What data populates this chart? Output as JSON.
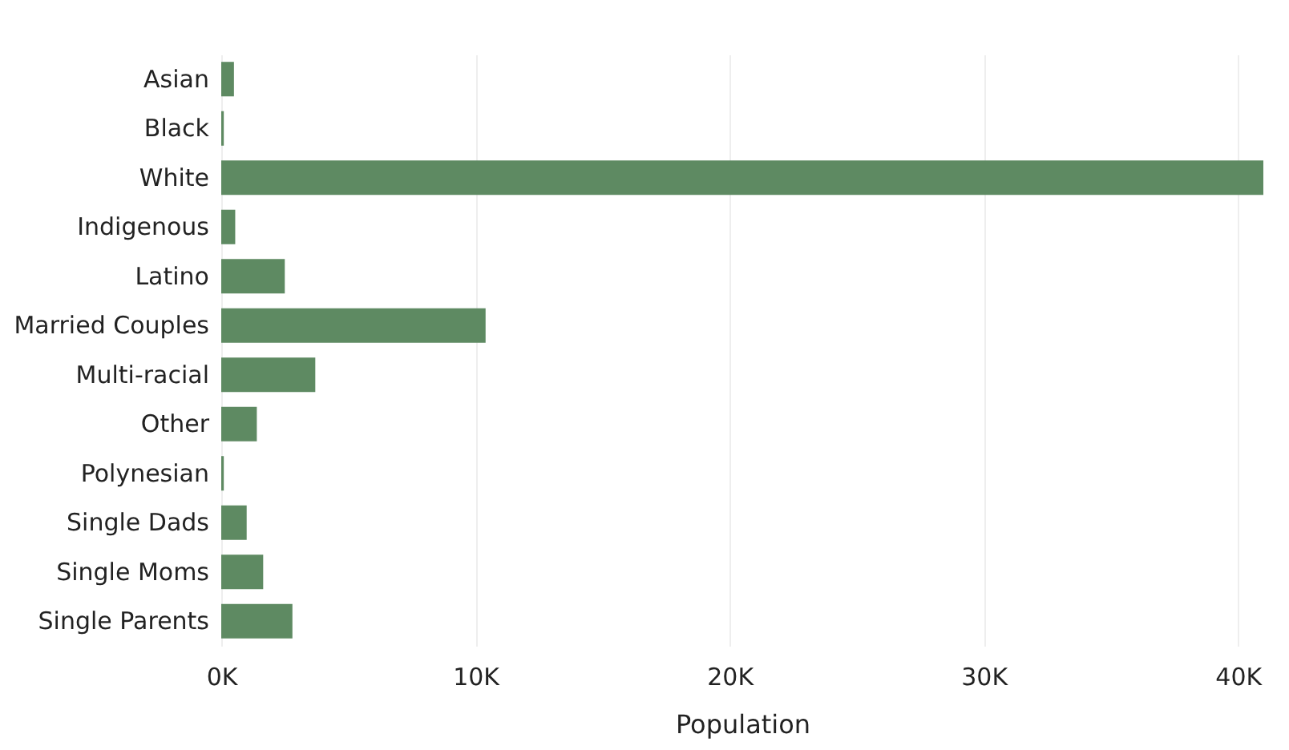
{
  "chart_data": {
    "type": "bar",
    "orientation": "horizontal",
    "xlabel": "Population",
    "categories": [
      "Asian",
      "Black",
      "White",
      "Indigenous",
      "Latino",
      "Married Couples",
      "Multi-racial",
      "Other",
      "Polynesian",
      "Single Dads",
      "Single Moms",
      "Single Parents"
    ],
    "values": [
      500,
      100,
      41000,
      550,
      2500,
      10400,
      3700,
      1400,
      100,
      1000,
      1650,
      2800
    ],
    "color": "#5e8a62",
    "xlim": [
      0,
      41000
    ],
    "xticks": [
      {
        "value": 0,
        "label": "0K"
      },
      {
        "value": 10000,
        "label": "10K"
      },
      {
        "value": 20000,
        "label": "20K"
      },
      {
        "value": 30000,
        "label": "30K"
      },
      {
        "value": 40000,
        "label": "40K"
      }
    ],
    "grid": "x"
  }
}
